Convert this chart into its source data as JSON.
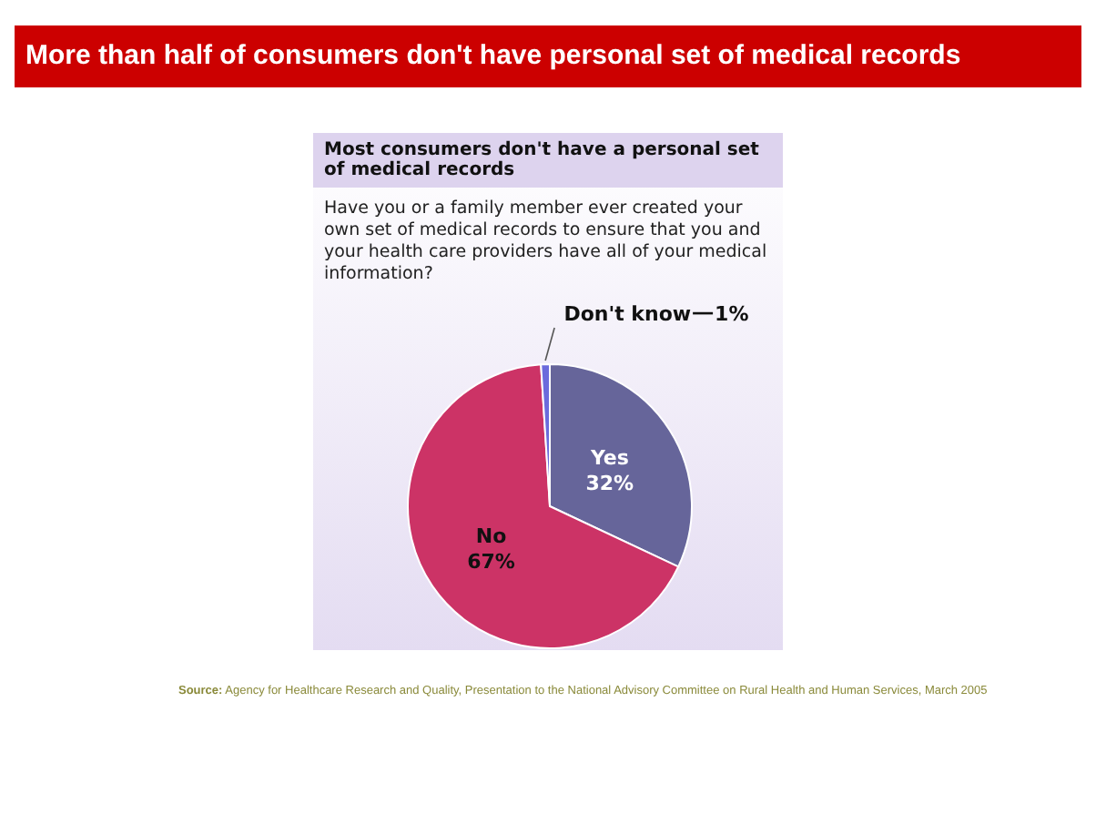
{
  "chart_data": {
    "type": "pie",
    "title": "More than half of consumers don't have personal set of medical records",
    "subtitle": "Most consumers don't have a personal set of medical records",
    "annotations": [
      "Have you or a family member ever created your own set of medical records to ensure that you and your health care providers have all of your medical information?",
      "Source: Agency for Healthcare Research and Quality, Presentation to the National Advisory Committee on Rural Health and Human Services, March 2005"
    ],
    "categories": [
      "Yes",
      "No",
      "Don't know"
    ],
    "values": [
      32,
      67,
      1
    ],
    "colors": [
      "#66659a",
      "#cc3366",
      "#6b6bdc"
    ],
    "value_labels": [
      "32%",
      "67%",
      "1%"
    ],
    "legend": false
  }
}
